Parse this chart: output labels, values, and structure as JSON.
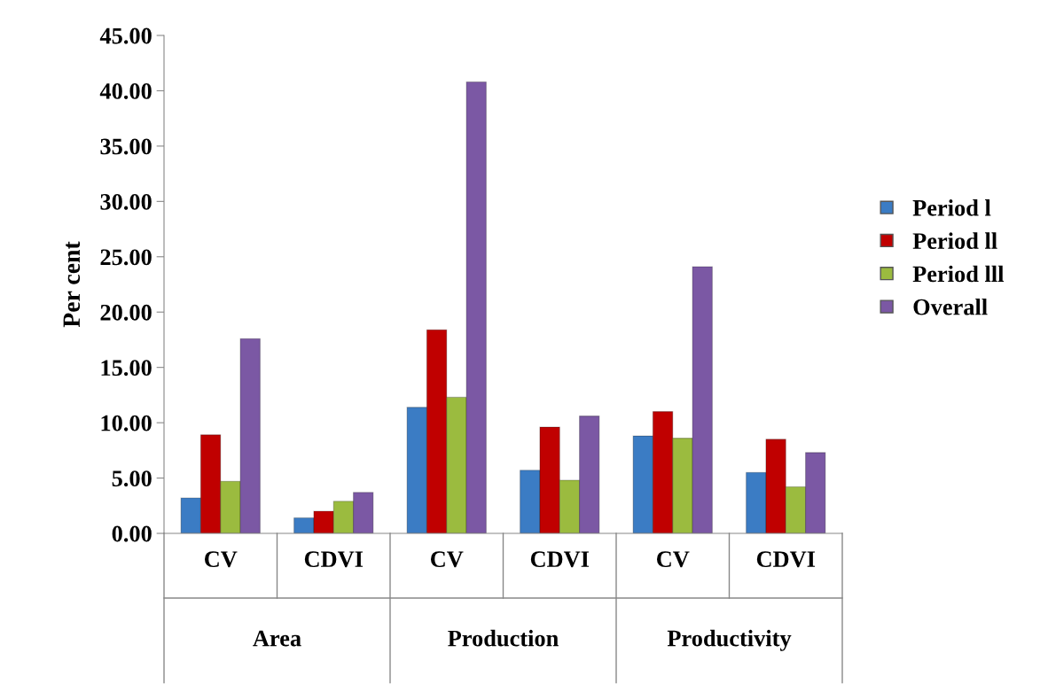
{
  "chart_data": {
    "type": "bar",
    "ylabel": "Per cent",
    "categories": [
      "CV",
      "CDVI",
      "CV",
      "CDVI",
      "CV",
      "CDVI"
    ],
    "annotations": [
      "Area",
      "Production",
      "Productivity"
    ],
    "series": [
      {
        "name": "Period l",
        "color": "#3b7cc4",
        "values": [
          3.2,
          1.4,
          11.4,
          5.7,
          8.8,
          5.5
        ]
      },
      {
        "name": "Period ll",
        "color": "#c00000",
        "values": [
          8.9,
          2.0,
          18.4,
          9.6,
          11.0,
          8.5
        ]
      },
      {
        "name": "Period lll",
        "color": "#9bbb3f",
        "values": [
          4.7,
          2.9,
          12.3,
          4.8,
          8.6,
          4.2
        ]
      },
      {
        "name": "Overall",
        "color": "#7b58a4",
        "values": [
          17.6,
          3.7,
          40.8,
          10.6,
          24.1,
          7.3
        ]
      }
    ],
    "ylim": [
      0,
      45
    ],
    "yticks": [
      {
        "value": 0,
        "label": "0.00"
      },
      {
        "value": 5,
        "label": "5.00"
      },
      {
        "value": 10,
        "label": "10.00"
      },
      {
        "value": 15,
        "label": "15.00"
      },
      {
        "value": 20,
        "label": "20.00"
      },
      {
        "value": 25,
        "label": "25.00"
      },
      {
        "value": 30,
        "label": "30.00"
      },
      {
        "value": 35,
        "label": "35.00"
      },
      {
        "value": 40,
        "label": "40.00"
      },
      {
        "value": 45,
        "label": "45.00"
      }
    ],
    "legend": "right",
    "grid": false
  }
}
